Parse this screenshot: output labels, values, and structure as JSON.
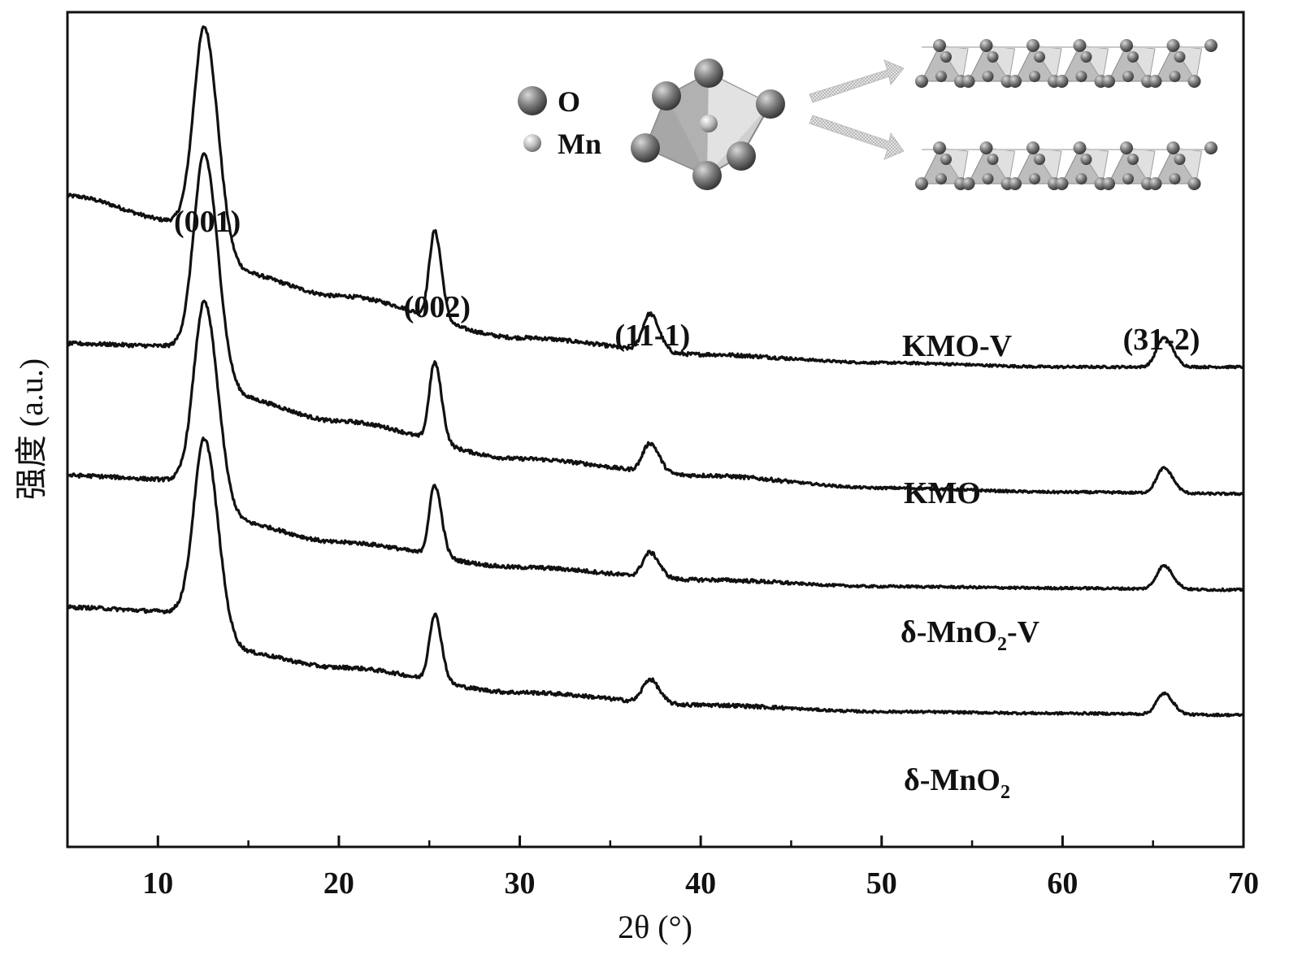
{
  "chart_data": {
    "type": "line",
    "xlabel": "2θ (°)",
    "ylabel": "强度 (a.u.)",
    "xlim": [
      5,
      70
    ],
    "x_ticks": [
      10,
      20,
      30,
      40,
      50,
      60,
      70
    ],
    "x_minor_ticks": [
      15,
      25,
      35,
      45,
      55,
      65
    ],
    "y_ticks": [],
    "grid": false,
    "peak_labels": [
      {
        "label": "(001)",
        "x": 12.6
      },
      {
        "label": "(002)",
        "x": 25.3
      },
      {
        "label": "(11-1)",
        "x": 37.2
      },
      {
        "label": "(31-2)",
        "x": 65.6
      }
    ],
    "series": [
      {
        "name": "KMO-V",
        "label_parts": [
          {
            "text": "KMO-V"
          }
        ],
        "baseline": [
          [
            5,
            0.78
          ],
          [
            11,
            0.75
          ],
          [
            14,
            0.69
          ],
          [
            20,
            0.66
          ],
          [
            30,
            0.61
          ],
          [
            40,
            0.59
          ],
          [
            50,
            0.58
          ],
          [
            60,
            0.575
          ],
          [
            70,
            0.575
          ]
        ],
        "peaks": [
          [
            12.6,
            0.265,
            0.6
          ],
          [
            25.3,
            0.105,
            0.3
          ],
          [
            37.2,
            0.045,
            0.4
          ],
          [
            65.6,
            0.035,
            0.4
          ]
        ]
      },
      {
        "name": "KMO",
        "label_parts": [
          {
            "text": "KMO"
          }
        ],
        "baseline": [
          [
            5,
            0.603
          ],
          [
            11,
            0.6
          ],
          [
            14,
            0.54
          ],
          [
            20,
            0.51
          ],
          [
            30,
            0.465
          ],
          [
            40,
            0.445
          ],
          [
            50,
            0.43
          ],
          [
            60,
            0.425
          ],
          [
            70,
            0.423
          ]
        ],
        "peaks": [
          [
            12.6,
            0.263,
            0.6
          ],
          [
            25.3,
            0.095,
            0.3
          ],
          [
            37.2,
            0.035,
            0.4
          ],
          [
            65.6,
            0.03,
            0.4
          ]
        ]
      },
      {
        "name": "δ-MnO2-V",
        "label_parts": [
          {
            "text": "δ-MnO"
          },
          {
            "text": "2",
            "sub": true
          },
          {
            "text": "-V"
          }
        ],
        "baseline": [
          [
            5,
            0.445
          ],
          [
            11,
            0.44
          ],
          [
            14,
            0.39
          ],
          [
            20,
            0.365
          ],
          [
            30,
            0.335
          ],
          [
            40,
            0.32
          ],
          [
            50,
            0.312
          ],
          [
            60,
            0.31
          ],
          [
            70,
            0.308
          ]
        ],
        "peaks": [
          [
            12.6,
            0.24,
            0.6
          ],
          [
            25.3,
            0.085,
            0.3
          ],
          [
            37.2,
            0.03,
            0.4
          ],
          [
            65.6,
            0.028,
            0.4
          ]
        ]
      },
      {
        "name": "δ-MnO2",
        "label_parts": [
          {
            "text": "δ-MnO"
          },
          {
            "text": "2",
            "sub": true
          }
        ],
        "baseline": [
          [
            5,
            0.287
          ],
          [
            11,
            0.282
          ],
          [
            14,
            0.235
          ],
          [
            20,
            0.215
          ],
          [
            30,
            0.185
          ],
          [
            40,
            0.17
          ],
          [
            50,
            0.162
          ],
          [
            60,
            0.16
          ],
          [
            70,
            0.158
          ]
        ],
        "peaks": [
          [
            12.6,
            0.233,
            0.6
          ],
          [
            25.3,
            0.08,
            0.3
          ],
          [
            37.2,
            0.028,
            0.4
          ],
          [
            65.6,
            0.025,
            0.4
          ]
        ]
      }
    ],
    "inset": {
      "legend": [
        {
          "symbol": "large-sphere",
          "label": "O"
        },
        {
          "symbol": "small-sphere",
          "label": "Mn"
        }
      ],
      "description_shapes": [
        "octahedron",
        "arrows",
        "layer-chain-top",
        "layer-chain-bottom"
      ]
    }
  }
}
